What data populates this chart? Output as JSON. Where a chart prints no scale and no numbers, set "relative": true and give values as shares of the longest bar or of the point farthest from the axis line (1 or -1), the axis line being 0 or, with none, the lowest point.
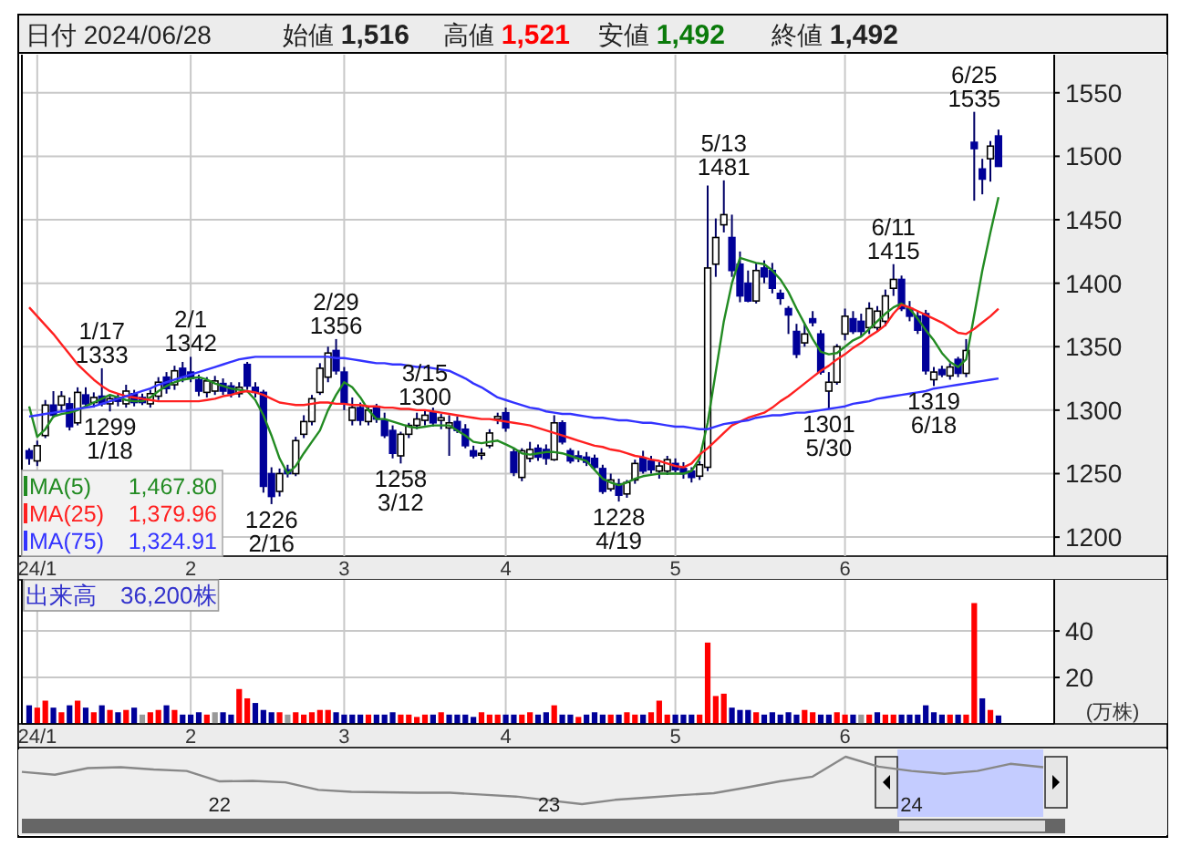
{
  "chart_data": [
    {
      "type": "candlestick",
      "grid": true,
      "legend": "bottom left",
      "ylim": [
        1185,
        1580
      ],
      "yticks": [
        1200,
        1250,
        1300,
        1350,
        1400,
        1450,
        1500,
        1550
      ],
      "categories": [
        null,
        "24/1",
        null,
        null,
        null,
        null,
        null,
        null,
        null,
        null,
        null,
        null,
        null,
        null,
        null,
        null,
        null,
        null,
        null,
        null,
        "2",
        null,
        null,
        null,
        null,
        null,
        null,
        null,
        null,
        null,
        null,
        null,
        null,
        null,
        null,
        null,
        null,
        null,
        null,
        "3",
        null,
        null,
        null,
        null,
        null,
        null,
        null,
        null,
        null,
        null,
        null,
        null,
        null,
        null,
        null,
        null,
        null,
        null,
        null,
        "4",
        null,
        null,
        null,
        null,
        null,
        null,
        null,
        null,
        null,
        null,
        null,
        null,
        null,
        null,
        null,
        null,
        null,
        null,
        null,
        null,
        "5",
        null,
        null,
        null,
        null,
        null,
        null,
        null,
        null,
        null,
        null,
        null,
        null,
        null,
        null,
        null,
        null,
        null,
        null,
        null,
        null,
        "6",
        null,
        null,
        null,
        null,
        null,
        null,
        null,
        null,
        null,
        null,
        null,
        null,
        null,
        null,
        null,
        null,
        null,
        null,
        null
      ],
      "ohlc": [
        [
          1268,
          1270,
          1257,
          1262
        ],
        [
          1260,
          1276,
          1256,
          1272
        ],
        [
          1280,
          1308,
          1278,
          1304
        ],
        [
          1304,
          1315,
          1294,
          1296
        ],
        [
          1304,
          1315,
          1300,
          1311
        ],
        [
          1305,
          1310,
          1284,
          1287
        ],
        [
          1290,
          1318,
          1288,
          1314
        ],
        [
          1312,
          1318,
          1302,
          1305
        ],
        [
          1306,
          1314,
          1302,
          1310
        ],
        [
          1311,
          1333,
          1303,
          1305
        ],
        [
          1305,
          1312,
          1299,
          1309
        ],
        [
          1310,
          1313,
          1303,
          1307
        ],
        [
          1305,
          1320,
          1302,
          1315
        ],
        [
          1313,
          1316,
          1303,
          1306
        ],
        [
          1310,
          1313,
          1304,
          1306
        ],
        [
          1305,
          1316,
          1302,
          1313
        ],
        [
          1311,
          1326,
          1308,
          1322
        ],
        [
          1326,
          1330,
          1313,
          1317
        ],
        [
          1320,
          1335,
          1316,
          1331
        ],
        [
          1333,
          1338,
          1322,
          1326
        ],
        [
          1330,
          1342,
          1322,
          1325
        ],
        [
          1324,
          1328,
          1311,
          1315
        ],
        [
          1314,
          1326,
          1310,
          1323
        ],
        [
          1315,
          1327,
          1312,
          1323
        ],
        [
          1321,
          1325,
          1312,
          1315
        ],
        [
          1319,
          1322,
          1310,
          1313
        ],
        [
          1313,
          1322,
          1310,
          1318
        ],
        [
          1336,
          1338,
          1316,
          1319
        ],
        [
          1318,
          1322,
          1310,
          1314
        ],
        [
          1314,
          1316,
          1235,
          1240
        ],
        [
          1250,
          1255,
          1226,
          1232
        ],
        [
          1236,
          1254,
          1232,
          1250
        ],
        [
          1253,
          1257,
          1247,
          1250
        ],
        [
          1250,
          1279,
          1248,
          1276
        ],
        [
          1281,
          1296,
          1278,
          1291
        ],
        [
          1291,
          1312,
          1288,
          1309
        ],
        [
          1314,
          1337,
          1312,
          1333
        ],
        [
          1326,
          1350,
          1322,
          1345
        ],
        [
          1347,
          1356,
          1328,
          1331
        ],
        [
          1330,
          1334,
          1300,
          1305
        ],
        [
          1292,
          1310,
          1288,
          1302
        ],
        [
          1302,
          1306,
          1288,
          1292
        ],
        [
          1291,
          1303,
          1288,
          1300
        ],
        [
          1303,
          1305,
          1290,
          1293
        ],
        [
          1292,
          1298,
          1278,
          1280
        ],
        [
          1284,
          1288,
          1262,
          1266
        ],
        [
          1264,
          1283,
          1258,
          1281
        ],
        [
          1281,
          1290,
          1278,
          1288
        ],
        [
          1288,
          1298,
          1285,
          1293
        ],
        [
          1292,
          1300,
          1288,
          1296
        ],
        [
          1298,
          1302,
          1287,
          1290
        ],
        [
          1292,
          1297,
          1285,
          1294
        ],
        [
          1286,
          1296,
          1264,
          1290
        ],
        [
          1291,
          1295,
          1282,
          1284
        ],
        [
          1285,
          1289,
          1270,
          1272
        ],
        [
          1268,
          1272,
          1262,
          1264
        ],
        [
          1265,
          1270,
          1261,
          1266
        ],
        [
          1272,
          1285,
          1270,
          1282
        ],
        [
          1293,
          1298,
          1289,
          1295
        ],
        [
          1298,
          1302,
          1283,
          1286
        ],
        [
          1267,
          1270,
          1248,
          1251
        ],
        [
          1247,
          1270,
          1244,
          1268
        ],
        [
          1262,
          1275,
          1259,
          1269
        ],
        [
          1270,
          1273,
          1260,
          1263
        ],
        [
          1269,
          1273,
          1257,
          1262
        ],
        [
          1261,
          1296,
          1260,
          1290
        ],
        [
          1290,
          1292,
          1273,
          1275
        ],
        [
          1268,
          1270,
          1258,
          1260
        ],
        [
          1264,
          1268,
          1259,
          1262
        ],
        [
          1263,
          1267,
          1256,
          1259
        ],
        [
          1262,
          1265,
          1253,
          1255
        ],
        [
          1254,
          1257,
          1234,
          1236
        ],
        [
          1238,
          1250,
          1236,
          1245
        ],
        [
          1242,
          1246,
          1228,
          1233
        ],
        [
          1234,
          1245,
          1231,
          1243
        ],
        [
          1245,
          1261,
          1242,
          1258
        ],
        [
          1262,
          1268,
          1250,
          1252
        ],
        [
          1260,
          1264,
          1250,
          1253
        ],
        [
          1252,
          1259,
          1246,
          1256
        ],
        [
          1252,
          1264,
          1249,
          1261
        ],
        [
          1258,
          1262,
          1251,
          1253
        ],
        [
          1254,
          1259,
          1246,
          1250
        ],
        [
          1252,
          1255,
          1243,
          1247
        ],
        [
          1248,
          1260,
          1245,
          1257
        ],
        [
          1255,
          1477,
          1252,
          1412
        ],
        [
          1415,
          1451,
          1405,
          1436
        ],
        [
          1446,
          1481,
          1440,
          1454
        ],
        [
          1436,
          1454,
          1405,
          1410
        ],
        [
          1415,
          1425,
          1385,
          1390
        ],
        [
          1400,
          1410,
          1385,
          1386
        ],
        [
          1386,
          1416,
          1384,
          1410
        ],
        [
          1412,
          1418,
          1400,
          1405
        ],
        [
          1410,
          1416,
          1392,
          1396
        ],
        [
          1392,
          1395,
          1383,
          1388
        ],
        [
          1380,
          1382,
          1360,
          1375
        ],
        [
          1362,
          1368,
          1341,
          1344
        ],
        [
          1353,
          1368,
          1350,
          1360
        ],
        [
          1372,
          1378,
          1366,
          1369
        ],
        [
          1360,
          1363,
          1328,
          1330
        ],
        [
          1315,
          1330,
          1301,
          1322
        ],
        [
          1322,
          1352,
          1320,
          1350
        ],
        [
          1360,
          1380,
          1355,
          1374
        ],
        [
          1372,
          1378,
          1360,
          1362
        ],
        [
          1370,
          1376,
          1358,
          1362
        ],
        [
          1365,
          1385,
          1360,
          1380
        ],
        [
          1365,
          1382,
          1362,
          1378
        ],
        [
          1370,
          1395,
          1366,
          1390
        ],
        [
          1396,
          1415,
          1390,
          1403
        ],
        [
          1403,
          1406,
          1378,
          1380
        ],
        [
          1380,
          1386,
          1370,
          1374
        ],
        [
          1374,
          1378,
          1360,
          1363
        ],
        [
          1376,
          1379,
          1328,
          1331
        ],
        [
          1324,
          1334,
          1319,
          1330
        ],
        [
          1332,
          1335,
          1326,
          1328
        ],
        [
          1327,
          1337,
          1324,
          1334
        ],
        [
          1340,
          1342,
          1326,
          1329
        ],
        [
          1329,
          1356,
          1326,
          1347
        ],
        [
          1511,
          1535,
          1465,
          1506
        ],
        [
          1490,
          1498,
          1470,
          1482
        ],
        [
          1498,
          1512,
          1480,
          1508
        ],
        [
          1516,
          1521,
          1492,
          1492
        ]
      ],
      "series": [
        {
          "type": "line",
          "name": "MA(5)",
          "color": "#228b22",
          "values": [
            1303,
            1279,
            1285,
            1295,
            1297,
            1298,
            1300,
            1303,
            1306,
            1309,
            1312,
            1310,
            1308,
            1307,
            1307,
            1310,
            1315,
            1319,
            1322,
            1324,
            1325,
            1326,
            1324,
            1321,
            1319,
            1317,
            1316,
            1315,
            1308,
            1296,
            1280,
            1262,
            1250,
            1256,
            1266,
            1275,
            1284,
            1300,
            1312,
            1322,
            1318,
            1310,
            1300,
            1293,
            1293,
            1291,
            1289,
            1287,
            1286,
            1287,
            1288,
            1288,
            1288,
            1284,
            1280,
            1275,
            1274,
            1275,
            1276,
            1273,
            1270,
            1266,
            1265,
            1266,
            1267,
            1267,
            1266,
            1264,
            1262,
            1260,
            1253,
            1246,
            1243,
            1241,
            1243,
            1246,
            1248,
            1249,
            1250,
            1250,
            1250,
            1250,
            1252,
            1262,
            1290,
            1330,
            1370,
            1400,
            1420,
            1418,
            1416,
            1415,
            1410,
            1403,
            1393,
            1380,
            1368,
            1356,
            1346,
            1344,
            1345,
            1350,
            1355,
            1358,
            1364,
            1370,
            1376,
            1381,
            1384,
            1380,
            1372,
            1363,
            1355,
            1345,
            1338,
            1334,
            1340,
            1375,
            1410,
            1440,
            1467.8
          ]
        },
        {
          "type": "line",
          "name": "MA(25)",
          "color": "#ff2020",
          "values": [
            1381,
            1374,
            1367,
            1360,
            1352,
            1344,
            1336,
            1330,
            1324,
            1319,
            1315,
            1313,
            1311,
            1310,
            1309,
            1308,
            1307,
            1307,
            1307,
            1307,
            1307,
            1307,
            1308,
            1309,
            1311,
            1312,
            1314,
            1315,
            1314,
            1312,
            1309,
            1306,
            1305,
            1304,
            1304,
            1305,
            1306,
            1306,
            1305,
            1305,
            1304,
            1304,
            1303,
            1303,
            1302,
            1302,
            1301,
            1301,
            1300,
            1300,
            1299,
            1298,
            1297,
            1296,
            1295,
            1294,
            1293,
            1293,
            1292,
            1291,
            1290,
            1289,
            1288,
            1286,
            1284,
            1282,
            1280,
            1278,
            1276,
            1274,
            1272,
            1271,
            1269,
            1268,
            1266,
            1264,
            1263,
            1261,
            1260,
            1258,
            1256,
            1255,
            1258,
            1265,
            1270,
            1276,
            1282,
            1288,
            1291,
            1294,
            1296,
            1298,
            1302,
            1307,
            1311,
            1316,
            1321,
            1326,
            1331,
            1335,
            1340,
            1344,
            1349,
            1353,
            1358,
            1362,
            1367,
            1376,
            1383,
            1381,
            1378,
            1375,
            1372,
            1369,
            1365,
            1361,
            1360,
            1364,
            1369,
            1374,
            1379.96
          ]
        },
        {
          "type": "line",
          "name": "MA(75)",
          "color": "#3333ff",
          "values": [
            1295,
            1296,
            1297,
            1298,
            1299,
            1300,
            1301,
            1302,
            1303,
            1305,
            1307,
            1309,
            1311,
            1313,
            1315,
            1317,
            1320,
            1322,
            1324,
            1326,
            1328,
            1330,
            1332,
            1334,
            1336,
            1338,
            1340,
            1341,
            1342,
            1342,
            1342,
            1342,
            1342,
            1342,
            1342,
            1342,
            1342,
            1342,
            1341,
            1341,
            1340,
            1339,
            1338,
            1337,
            1337,
            1336,
            1336,
            1335,
            1334,
            1334,
            1333,
            1332,
            1331,
            1328,
            1325,
            1321,
            1318,
            1314,
            1310,
            1308,
            1306,
            1304,
            1302,
            1301,
            1299,
            1298,
            1297,
            1297,
            1296,
            1295,
            1294,
            1294,
            1293,
            1292,
            1292,
            1291,
            1290,
            1290,
            1289,
            1288,
            1287,
            1287,
            1286,
            1285,
            1285,
            1287,
            1289,
            1290,
            1291,
            1292,
            1294,
            1295,
            1296,
            1296,
            1297,
            1298,
            1298,
            1299,
            1300,
            1301,
            1302,
            1303,
            1305,
            1306,
            1307,
            1309,
            1310,
            1311,
            1312,
            1313,
            1314,
            1315,
            1317,
            1318,
            1319,
            1320,
            1321,
            1322,
            1323,
            1324,
            1324.91
          ]
        }
      ],
      "annotations": [
        "日付 2024/06/28",
        "始値 **1,516**",
        "高値 **1,521**",
        "安値 **1,492**",
        "終値 **1,492**",
        "1,467.80",
        "1,379.96",
        "1,324.91",
        {
          "text": "1/17 1333",
          "y": 1333
        },
        {
          "text": "1299 1/18",
          "y": 1299
        },
        {
          "text": "2/1 1342",
          "y": 1342
        },
        {
          "text": "1226 2/16",
          "y": 1226
        },
        {
          "text": "2/29 1356",
          "y": 1356
        },
        {
          "text": "1258 3/12",
          "y": 1258
        },
        {
          "text": "3/15 1300",
          "y": 1300
        },
        {
          "text": "1228 4/19",
          "y": 1228
        },
        {
          "text": "5/13 1481",
          "y": 1481
        },
        {
          "text": "1301 5/30",
          "y": 1301
        },
        {
          "text": "6/11 1415",
          "y": 1415
        },
        {
          "text": "1319 6/18",
          "y": 1319
        },
        {
          "text": "6/25 1535",
          "y": 1535
        }
      ]
    },
    {
      "type": "bar",
      "grid": true,
      "title": "出来高　36,200株",
      "ylabel": "(万株)",
      "ylim": [
        0,
        62
      ],
      "yticks": [
        20,
        40
      ],
      "categories": [
        null,
        "24/1",
        null,
        null,
        null,
        null,
        null,
        null,
        null,
        null,
        null,
        null,
        null,
        null,
        null,
        null,
        null,
        null,
        null,
        null,
        "2",
        null,
        null,
        null,
        null,
        null,
        null,
        null,
        null,
        null,
        null,
        null,
        null,
        null,
        null,
        null,
        null,
        null,
        null,
        "3",
        null,
        null,
        null,
        null,
        null,
        null,
        null,
        null,
        null,
        null,
        null,
        null,
        null,
        null,
        null,
        null,
        null,
        null,
        null,
        "4",
        null,
        null,
        null,
        null,
        null,
        null,
        null,
        null,
        null,
        null,
        null,
        null,
        null,
        null,
        null,
        null,
        null,
        null,
        null,
        null,
        "5",
        null,
        null,
        null,
        null,
        null,
        null,
        null,
        null,
        null,
        null,
        null,
        null,
        null,
        null,
        null,
        null,
        null,
        null,
        null,
        null,
        "6",
        null,
        null,
        null,
        null,
        null,
        null,
        null,
        null,
        null,
        null,
        null,
        null,
        null,
        null,
        null,
        null,
        null,
        null,
        null
      ],
      "values": [
        8,
        7,
        10,
        7,
        5,
        8,
        10,
        7,
        5,
        8,
        6,
        5,
        6,
        7,
        4,
        5,
        6,
        8,
        6,
        4,
        4,
        5,
        4,
        5,
        5,
        4,
        15,
        11,
        9,
        6,
        5,
        5,
        4,
        5,
        4,
        5,
        6,
        6,
        5,
        4,
        4,
        4,
        4,
        4,
        4,
        5,
        4,
        4,
        3,
        4,
        4,
        5,
        4,
        4,
        4,
        3,
        5,
        4,
        4,
        4,
        4,
        4,
        5,
        4,
        5,
        8,
        4,
        4,
        3,
        4,
        5,
        4,
        4,
        4,
        5,
        4,
        4,
        5,
        10,
        4,
        4,
        4,
        4,
        4,
        35,
        12,
        13,
        7,
        6,
        6,
        5,
        4,
        5,
        4,
        5,
        4,
        6,
        5,
        4,
        4,
        5,
        4,
        4,
        4,
        4,
        5,
        4,
        4,
        4,
        4,
        4,
        8,
        5,
        4,
        4,
        4,
        4,
        52,
        11,
        6,
        3.62
      ],
      "colors": [
        "#000099",
        "#ff0000",
        "#ff0000",
        "#000099",
        "#ff0000",
        "#000099",
        "#ff0000",
        "#000099",
        "#ff0000",
        "#000099",
        "#ff0000",
        "#000099",
        "#ff0000",
        "#000099",
        "#999999",
        "#ff0000",
        "#ff0000",
        "#000099",
        "#ff0000",
        "#000099",
        "#000099",
        "#000099",
        "#ff0000",
        "#999999",
        "#000099",
        "#000099",
        "#ff0000",
        "#ff0000",
        "#000099",
        "#000099",
        "#000099",
        "#ff0000",
        "#999999",
        "#ff0000",
        "#ff0000",
        "#ff0000",
        "#ff0000",
        "#ff0000",
        "#000099",
        "#000099",
        "#000099",
        "#000099",
        "#ff0000",
        "#000099",
        "#000099",
        "#000099",
        "#ff0000",
        "#ff0000",
        "#ff0000",
        "#ff0000",
        "#000099",
        "#ff0000",
        "#000099",
        "#000099",
        "#000099",
        "#000099",
        "#ff0000",
        "#ff0000",
        "#ff0000",
        "#000099",
        "#000099",
        "#ff0000",
        "#ff0000",
        "#000099",
        "#000099",
        "#ff0000",
        "#000099",
        "#000099",
        "#ff0000",
        "#000099",
        "#000099",
        "#000099",
        "#ff0000",
        "#000099",
        "#ff0000",
        "#ff0000",
        "#000099",
        "#ff0000",
        "#ff0000",
        "#ff0000",
        "#000099",
        "#000099",
        "#000099",
        "#ff0000",
        "#ff0000",
        "#ff0000",
        "#ff0000",
        "#000099",
        "#000099",
        "#000099",
        "#ff0000",
        "#000099",
        "#000099",
        "#000099",
        "#000099",
        "#000099",
        "#ff0000",
        "#ff0000",
        "#000099",
        "#000099",
        "#ff0000",
        "#ff0000",
        "#000099",
        "#999999",
        "#ff0000",
        "#000099",
        "#ff0000",
        "#ff0000",
        "#000099",
        "#000099",
        "#000099",
        "#000099",
        "#000099",
        "#000099",
        "#ff0000",
        "#000099",
        "#ff0000",
        "#ff0000",
        "#000099",
        "#ff0000",
        "#000099"
      ]
    },
    {
      "type": "line",
      "relative": true,
      "tick_labels": "x",
      "color": "#888888",
      "categories": [
        null,
        null,
        null,
        null,
        null,
        null,
        "22",
        null,
        null,
        null,
        null,
        null,
        null,
        null,
        null,
        null,
        "23",
        null,
        null,
        null,
        null,
        null,
        null,
        null,
        null,
        null,
        null,
        "24",
        null,
        null,
        null,
        null
      ],
      "values": [
        0.68,
        0.62,
        0.76,
        0.78,
        0.73,
        0.7,
        0.48,
        0.49,
        0.46,
        0.3,
        0.26,
        0.25,
        0.24,
        0.24,
        0.2,
        0.16,
        0.08,
        0,
        0.09,
        0.14,
        0.19,
        0.23,
        0.35,
        0.48,
        0.58,
        1,
        0.79,
        0.7,
        0.64,
        0.7,
        0.85,
        0.78
      ]
    }
  ]
}
